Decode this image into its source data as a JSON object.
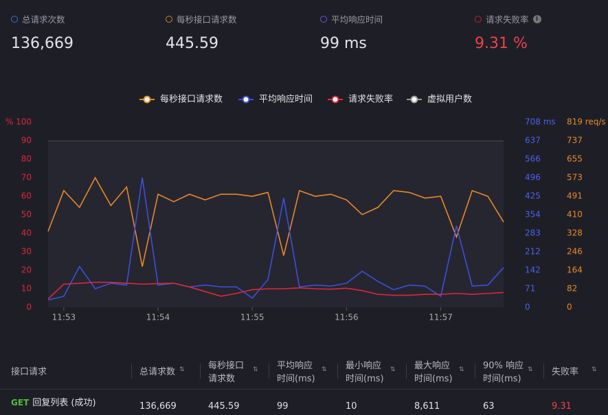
{
  "stats": [
    {
      "label": "总请求次数",
      "value": "136,669",
      "color": "#3a6fd0"
    },
    {
      "label": "每秒接口请求数",
      "value": "445.59",
      "color": "#d0822a"
    },
    {
      "label": "平均响应时间",
      "value": "99 ms",
      "color": "#6a55d8"
    },
    {
      "label": "请求失败率",
      "value": "9.31 %",
      "color": "#c0202e"
    }
  ],
  "chart_data": {
    "type": "line",
    "categories": [
      null,
      "11:53",
      null,
      null,
      null,
      null,
      null,
      "11:54",
      null,
      null,
      null,
      null,
      null,
      "11:55",
      null,
      null,
      null,
      null,
      null,
      "11:56",
      null,
      null,
      null,
      null,
      null,
      "11:57",
      null,
      null,
      null,
      null
    ],
    "ylim": [
      0,
      100
    ],
    "yticks": [
      0,
      10,
      20,
      30,
      40,
      50,
      60,
      70,
      80,
      90,
      {
        "value": 100,
        "label": "% 100"
      }
    ],
    "y2lim": [
      0,
      708
    ],
    "y2ticks": [
      0,
      71,
      142,
      212,
      283,
      354,
      425,
      496,
      566,
      637,
      {
        "value": 708,
        "label": "708 ms"
      }
    ],
    "y3lim": [
      0,
      819
    ],
    "y3ticks": [
      0,
      82,
      164,
      246,
      328,
      410,
      491,
      573,
      655,
      737,
      {
        "value": 819,
        "label": "819 req/s"
      }
    ],
    "series": [
      {
        "name": "每秒接口请求数",
        "color": "#e8892a",
        "axis": "y3",
        "values": [
          336,
          516,
          442,
          573,
          450,
          532,
          180,
          500,
          467,
          500,
          475,
          500,
          500,
          491,
          508,
          229,
          516,
          491,
          500,
          475,
          410,
          442,
          516,
          508,
          483,
          491,
          311,
          516,
          491,
          377
        ]
      },
      {
        "name": "平均响应时间",
        "color": "#3b50dc",
        "axis": "y2",
        "values": [
          28,
          42,
          156,
          71,
          92,
          85,
          496,
          85,
          92,
          78,
          85,
          78,
          78,
          35,
          106,
          418,
          78,
          85,
          81,
          92,
          138,
          99,
          67,
          85,
          81,
          42,
          312,
          81,
          85,
          152
        ]
      },
      {
        "name": "请求失败率",
        "color": "#e0263a",
        "values": [
          4.5,
          12.5,
          13,
          13.5,
          13.5,
          13,
          12.5,
          12.8,
          13,
          11,
          8.5,
          6,
          7.5,
          9.5,
          10,
          10,
          10.5,
          10,
          9.8,
          10.3,
          9,
          7,
          6.5,
          6.5,
          7,
          7,
          7.5,
          7,
          7.5,
          8
        ]
      },
      {
        "name": "虚拟用户数",
        "color": "#9a9a9a",
        "values": [
          null,
          null,
          null,
          null,
          null,
          null,
          null,
          null,
          null,
          null,
          null,
          null,
          null,
          null,
          null,
          null,
          null,
          null,
          null,
          null,
          null,
          null,
          null,
          null,
          null,
          null,
          null,
          null,
          null,
          null
        ]
      }
    ]
  },
  "table": {
    "headers": [
      [
        "接口请求"
      ],
      [
        "总请求数"
      ],
      [
        "每秒接口",
        "请求数"
      ],
      [
        "平均响应",
        "时间(ms)"
      ],
      [
        "最小响应",
        "时间(ms)"
      ],
      [
        "最大响应",
        "时间(ms)"
      ],
      [
        "90% 响应",
        "时间(ms)"
      ],
      [
        "失败率"
      ]
    ],
    "rows": [
      {
        "method": "GET",
        "name": "回复列表 (成功)",
        "cells": [
          "136,669",
          "445.59",
          "99",
          "10",
          "8,611",
          "63",
          "9.31"
        ]
      }
    ]
  }
}
